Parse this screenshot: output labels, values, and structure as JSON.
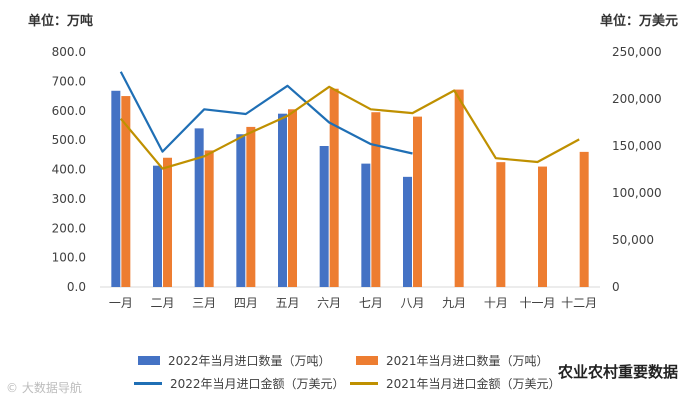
{
  "chart_data": {
    "type": "bar+line",
    "unit_left": "单位：万吨",
    "unit_right": "单位：万美元",
    "categories": [
      "一月",
      "二月",
      "三月",
      "四月",
      "五月",
      "六月",
      "七月",
      "八月",
      "九月",
      "十月",
      "十一月",
      "十二月"
    ],
    "y_left": {
      "min": 0,
      "max": 800,
      "ticks": [
        "0.0",
        "100.0",
        "200.0",
        "300.0",
        "400.0",
        "500.0",
        "600.0",
        "700.0",
        "800.0"
      ]
    },
    "y_right": {
      "min": 0,
      "max": 250000,
      "ticks": [
        "0",
        "50,000",
        "100,000",
        "150,000",
        "200,000",
        "250,000"
      ]
    },
    "series": [
      {
        "name": "2022年当月进口数量（万吨）",
        "type": "bar",
        "axis": "left",
        "color": "#4472C4",
        "values": [
          668,
          413,
          540,
          520,
          590,
          480,
          420,
          375,
          null,
          null,
          null,
          null
        ]
      },
      {
        "name": "2021年当月进口数量（万吨）",
        "type": "bar",
        "axis": "left",
        "color": "#ED7D31",
        "values": [
          650,
          440,
          465,
          545,
          605,
          675,
          595,
          580,
          672,
          425,
          410,
          460
        ]
      },
      {
        "name": "2022年当月进口金额（万美元）",
        "type": "line",
        "axis": "right",
        "color": "#1F6FB5",
        "values": [
          229000,
          144000,
          189000,
          184000,
          214000,
          175000,
          152000,
          142000,
          null,
          null,
          null,
          null
        ]
      },
      {
        "name": "2021年当月进口金额（万美元）",
        "type": "line",
        "axis": "right",
        "color": "#BF9000",
        "values": [
          179000,
          126000,
          139000,
          162000,
          182000,
          213000,
          189000,
          185000,
          209000,
          137000,
          133000,
          157000
        ]
      }
    ]
  },
  "watermark_left": "© 大数据导航",
  "watermark_right": "农业农村重要数据"
}
